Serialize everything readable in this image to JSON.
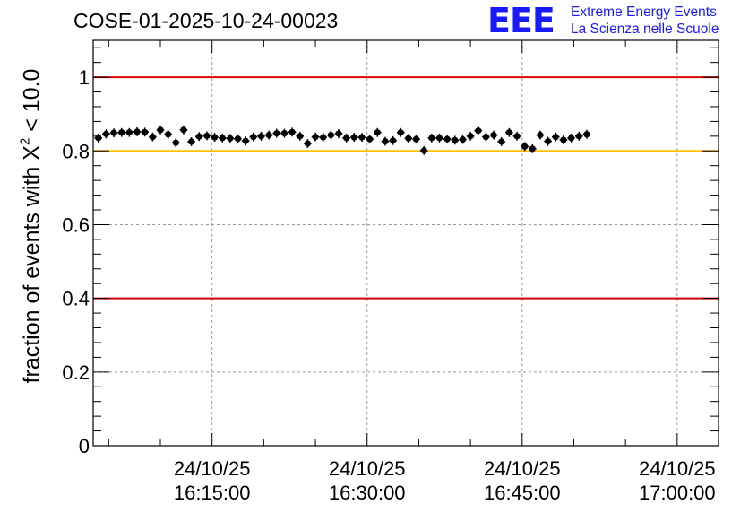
{
  "title": "COSE-01-2025-10-24-00023",
  "logo": {
    "mark": "EEE",
    "line1": "Extreme Energy Events",
    "line2": "La Scienza nelle Scuole"
  },
  "ylabel": {
    "before": "fraction of events with X",
    "sup": "2",
    "after": " < 10.0"
  },
  "colors": {
    "limit_line": "#dd0000",
    "threshold_line": "#ffc000",
    "points": "#000000",
    "grid": "#9a9a9a",
    "logo": "#1a1aff"
  },
  "chart_data": {
    "type": "scatter",
    "x_unit": "minutes",
    "xlim": [
      "24/10/25 16:03:30",
      "24/10/25 17:04:00"
    ],
    "ylim": [
      0,
      1.1
    ],
    "grid": true,
    "x_ticks": [
      {
        "date": "24/10/25",
        "time": "16:15:00"
      },
      {
        "date": "24/10/25",
        "time": "16:30:00"
      },
      {
        "date": "24/10/25",
        "time": "16:45:00"
      },
      {
        "date": "24/10/25",
        "time": "17:00:00"
      }
    ],
    "y_ticks": [
      "0",
      "0.2",
      "0.4",
      "0.6",
      "0.8",
      "1"
    ],
    "hlines": [
      {
        "y": 1.0,
        "color": "#dd0000"
      },
      {
        "y": 0.8,
        "color": "#ffc000"
      },
      {
        "y": 0.4,
        "color": "#dd0000"
      }
    ],
    "x_start": "24/10/25 16:04:00",
    "x_step_min": 0.75,
    "y": [
      0.835,
      0.846,
      0.849,
      0.85,
      0.85,
      0.852,
      0.851,
      0.838,
      0.857,
      0.845,
      0.822,
      0.857,
      0.825,
      0.839,
      0.841,
      0.837,
      0.835,
      0.834,
      0.833,
      0.827,
      0.838,
      0.84,
      0.843,
      0.848,
      0.848,
      0.851,
      0.84,
      0.82,
      0.838,
      0.837,
      0.843,
      0.847,
      0.835,
      0.837,
      0.837,
      0.832,
      0.85,
      0.826,
      0.828,
      0.85,
      0.834,
      0.832,
      0.801,
      0.835,
      0.835,
      0.832,
      0.829,
      0.831,
      0.84,
      0.855,
      0.838,
      0.843,
      0.825,
      0.85,
      0.84,
      0.812,
      0.806,
      0.843,
      0.826,
      0.838,
      0.83,
      0.835,
      0.84,
      0.845
    ],
    "y_err": 0.012,
    "x_err_min": 0.375
  }
}
